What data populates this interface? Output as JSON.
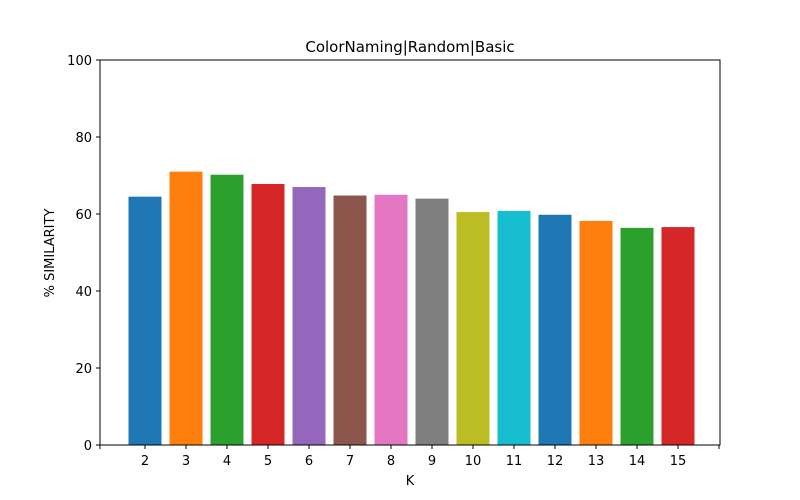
{
  "chart_data": {
    "type": "bar",
    "title": "ColorNaming|Random|Basic",
    "xlabel": "K",
    "ylabel": "% SIMILARITY",
    "categories": [
      "2",
      "3",
      "4",
      "5",
      "6",
      "7",
      "8",
      "9",
      "10",
      "11",
      "12",
      "13",
      "14",
      "15"
    ],
    "values": [
      64.5,
      71.0,
      70.2,
      67.8,
      67.0,
      64.8,
      65.0,
      64.0,
      60.5,
      60.8,
      59.8,
      58.2,
      56.4,
      56.6
    ],
    "ylim": [
      0,
      100
    ],
    "yticks": [
      "0",
      "20",
      "40",
      "60",
      "80",
      "100"
    ],
    "grid": false,
    "legend": "none",
    "colors": [
      "#1f77b4",
      "#ff7f0e",
      "#2ca02c",
      "#d62728",
      "#9467bd",
      "#8c564b",
      "#e377c2",
      "#7f7f7f",
      "#bcbd22",
      "#17becf",
      "#1f77b4",
      "#ff7f0e",
      "#2ca02c",
      "#d62728"
    ]
  }
}
